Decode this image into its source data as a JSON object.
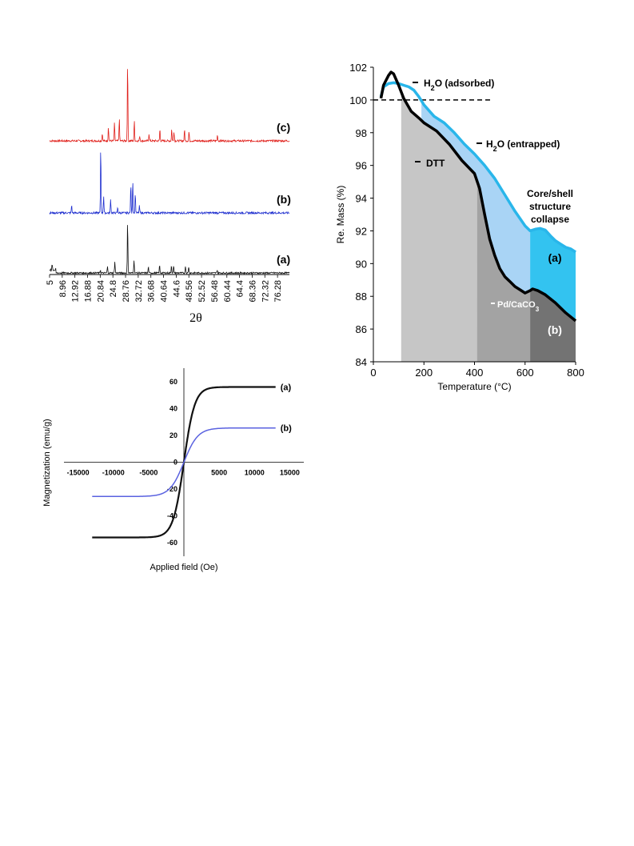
{
  "chart_data": [
    {
      "id": "xrd",
      "type": "line",
      "xlabel": "2θ",
      "ylabel": "",
      "ticks": [
        "5",
        "8.96",
        "12.92",
        "16.88",
        "20.84",
        "24.8",
        "28.76",
        "32.72",
        "36.68",
        "40.64",
        "44.6",
        "48.56",
        "52.52",
        "56.48",
        "60.44",
        "64.4",
        "68.36",
        "72.32",
        "76.28"
      ],
      "xlim": [
        5,
        80
      ],
      "series": [
        {
          "name": "(c)",
          "color": "#e0201b",
          "peaks": [
            [
              21.5,
              0.1
            ],
            [
              23.4,
              0.18
            ],
            [
              25.3,
              0.22
            ],
            [
              26.8,
              0.28
            ],
            [
              29.4,
              1.0
            ],
            [
              31.5,
              0.25
            ],
            [
              33.2,
              0.06
            ],
            [
              36.1,
              0.09
            ],
            [
              39.5,
              0.15
            ],
            [
              43.2,
              0.15
            ],
            [
              43.9,
              0.12
            ],
            [
              47.2,
              0.14
            ],
            [
              48.6,
              0.12
            ],
            [
              57.5,
              0.08
            ]
          ],
          "noise": 0.025
        },
        {
          "name": "(b)",
          "color": "#1f2fcf",
          "peaks": [
            [
              11.9,
              0.12
            ],
            [
              21.0,
              0.98
            ],
            [
              21.9,
              0.25
            ],
            [
              24.1,
              0.2
            ],
            [
              26.3,
              0.08
            ],
            [
              30.4,
              0.42
            ],
            [
              31.0,
              0.48
            ],
            [
              31.8,
              0.3
            ],
            [
              33.1,
              0.1
            ]
          ],
          "noise": 0.03
        },
        {
          "name": "(a)",
          "color": "#111111",
          "peaks": [
            [
              5.8,
              0.1
            ],
            [
              20.9,
              0.06
            ],
            [
              23.1,
              0.12
            ],
            [
              25.4,
              0.22
            ],
            [
              29.4,
              1.0
            ],
            [
              31.4,
              0.25
            ],
            [
              35.9,
              0.12
            ],
            [
              39.4,
              0.15
            ],
            [
              43.1,
              0.15
            ],
            [
              43.8,
              0.13
            ],
            [
              47.5,
              0.14
            ],
            [
              48.5,
              0.13
            ],
            [
              57.4,
              0.06
            ]
          ],
          "noise": 0.03
        }
      ]
    },
    {
      "id": "tga",
      "type": "area",
      "xlabel": "Temperature (°C)",
      "ylabel": "Re. Mass (%)",
      "xlim": [
        0,
        800
      ],
      "ylim": [
        84,
        102
      ],
      "xticks": [
        "0",
        "200",
        "400",
        "600",
        "800"
      ],
      "yticks": [
        "84",
        "86",
        "88",
        "90",
        "92",
        "94",
        "96",
        "98",
        "100",
        "102"
      ],
      "reference_line": 100,
      "series": [
        {
          "name": "(a)",
          "color": "#29b6ea",
          "x": [
            30,
            40,
            60,
            80,
            100,
            120,
            140,
            160,
            180,
            200,
            240,
            280,
            320,
            360,
            400,
            440,
            480,
            520,
            560,
            600,
            620,
            640,
            660,
            680,
            700,
            720,
            740,
            760,
            780,
            800
          ],
          "y": [
            100.2,
            100.8,
            101.0,
            101.05,
            101.0,
            100.9,
            100.8,
            100.6,
            100.2,
            99.7,
            99.0,
            98.6,
            98.0,
            97.3,
            96.7,
            96.0,
            95.2,
            94.2,
            93.2,
            92.3,
            92.0,
            92.1,
            92.15,
            92.05,
            91.7,
            91.4,
            91.2,
            91.0,
            90.9,
            90.7
          ]
        },
        {
          "name": "(b)",
          "color": "#000000",
          "x": [
            30,
            40,
            60,
            70,
            80,
            100,
            120,
            150,
            180,
            200,
            250,
            300,
            350,
            400,
            420,
            440,
            460,
            480,
            500,
            520,
            540,
            560,
            580,
            600,
            620,
            630,
            650,
            680,
            720,
            760,
            800
          ],
          "y": [
            100.1,
            100.9,
            101.5,
            101.7,
            101.6,
            100.9,
            100.1,
            99.3,
            98.9,
            98.6,
            98.1,
            97.3,
            96.3,
            95.5,
            94.6,
            93.0,
            91.5,
            90.5,
            89.7,
            89.2,
            88.9,
            88.6,
            88.4,
            88.2,
            88.35,
            88.45,
            88.35,
            88.1,
            87.6,
            87.0,
            86.5
          ]
        }
      ],
      "regions": [
        {
          "from": 110,
          "to": 410,
          "color": "#c6c6c6"
        },
        {
          "from": 410,
          "to": 620,
          "color": "#a3a3a3"
        },
        {
          "from": 620,
          "to": 800,
          "color": "#737373"
        }
      ],
      "annotations": {
        "h2o_ads": "H",
        "h2o_ads_sub": "2",
        "h2o_ads_rest": "O (adsorbed)",
        "h2o_ent": "H",
        "h2o_ent_sub": "2",
        "h2o_ent_rest": "O (entrapped)",
        "dtt": "DTT",
        "core1": "Core/shell",
        "core2": "structure",
        "core3": "collapse",
        "pd": "Pd/CaCO",
        "pd_sub": "3",
        "label_a": "(a)",
        "label_b": "(b)"
      }
    },
    {
      "id": "vsm",
      "type": "line",
      "xlabel": "Applied field (Oe)",
      "ylabel": "Magnetization (emu/g)",
      "xlim": [
        -17000,
        17000
      ],
      "ylim": [
        -70,
        70
      ],
      "xticks": [
        "-15000",
        "-10000",
        "-5000",
        "0",
        "5000",
        "10000",
        "15000"
      ],
      "xtick_values": [
        -15000,
        -10000,
        -5000,
        0,
        5000,
        10000,
        15000
      ],
      "yticks": [
        "60",
        "40",
        "20",
        "0",
        "-20",
        "-40",
        "-60"
      ],
      "ytick_values": [
        60,
        40,
        20,
        0,
        -20,
        -40,
        -60
      ],
      "series": [
        {
          "name": "(a)",
          "color": "#111111",
          "ms": 56,
          "h": 700,
          "xmax": 13000
        },
        {
          "name": "(b)",
          "color": "#5a62e0",
          "ms": 25.5,
          "h": 900,
          "xmax": 13000
        }
      ]
    }
  ]
}
